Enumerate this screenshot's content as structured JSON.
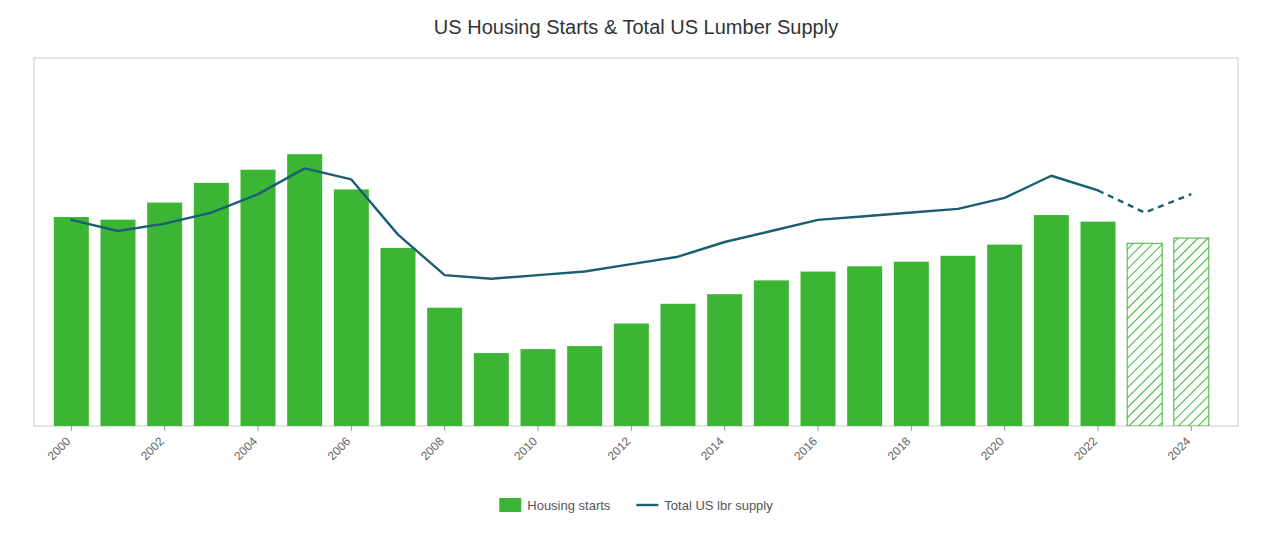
{
  "chart_data": {
    "type": "bar",
    "title": "US Housing Starts & Total US Lumber Supply",
    "x": [
      2000,
      2001,
      2002,
      2003,
      2004,
      2005,
      2006,
      2007,
      2008,
      2009,
      2010,
      2011,
      2012,
      2013,
      2014,
      2015,
      2016,
      2017,
      2018,
      2019,
      2020,
      2021,
      2022,
      2023,
      2024
    ],
    "xlim": [
      1999.2,
      2025.0
    ],
    "xticks": [
      2000,
      2002,
      2004,
      2006,
      2008,
      2010,
      2012,
      2014,
      2016,
      2018,
      2020,
      2022,
      2024
    ],
    "ylim": [
      0,
      2800
    ],
    "y2lim": [
      0,
      100
    ],
    "grid": false,
    "tick_labels": "x",
    "legend": "bottom",
    "series": [
      {
        "name": "Housing starts",
        "type": "bar",
        "color": "#3ab534",
        "line_style": "solid",
        "values": [
          1590,
          1570,
          1700,
          1850,
          1950,
          2068,
          1800,
          1355,
          900,
          555,
          585,
          608,
          780,
          930,
          1003,
          1108,
          1175,
          1215,
          1250,
          1295,
          1380,
          1605,
          1555,
          null,
          null
        ]
      },
      {
        "type": "bar",
        "color": "#3ab534",
        "line_style": "hatched",
        "values": [
          null,
          null,
          null,
          null,
          null,
          null,
          null,
          null,
          null,
          null,
          null,
          null,
          null,
          null,
          null,
          null,
          null,
          null,
          null,
          null,
          null,
          null,
          null,
          1390,
          1430
        ]
      },
      {
        "name": "Total US lbr supply",
        "type": "line",
        "axis": "y2",
        "color": "#1b5e72",
        "line_style": "solid",
        "values": [
          56,
          53,
          55,
          58,
          63,
          70,
          67,
          52,
          41,
          40,
          41,
          42,
          44,
          46,
          50,
          53,
          56,
          57,
          58,
          59,
          62,
          68,
          64,
          null,
          null
        ]
      },
      {
        "type": "line",
        "axis": "y2",
        "color": "#1b5e72",
        "line_style": "dashed",
        "values": [
          null,
          null,
          null,
          null,
          null,
          null,
          null,
          null,
          null,
          null,
          null,
          null,
          null,
          null,
          null,
          null,
          null,
          null,
          null,
          null,
          null,
          null,
          64,
          58,
          63
        ]
      }
    ]
  }
}
